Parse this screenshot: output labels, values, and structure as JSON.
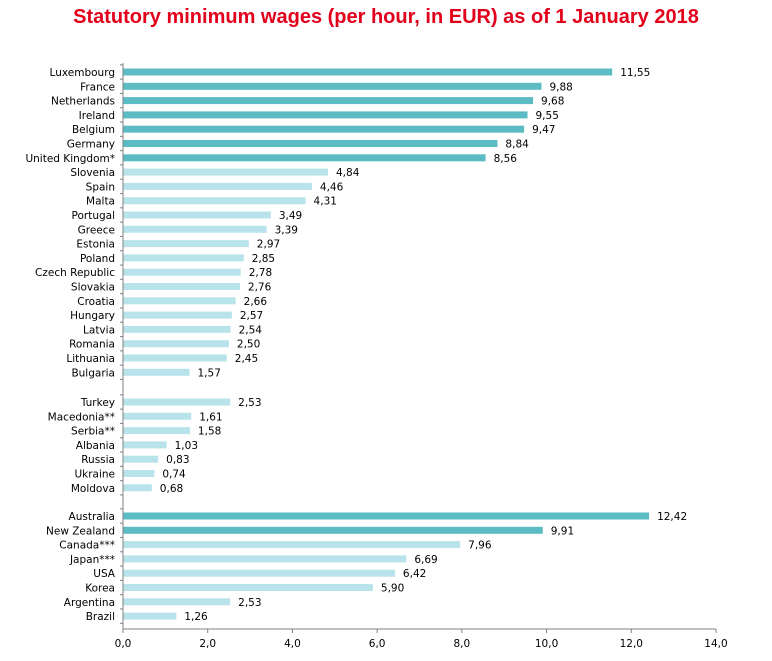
{
  "title": "Statutory minimum wages (per hour, in EUR) as of 1 January 2018",
  "colors": {
    "highlight": "#5bbcc3",
    "regular": "#b9e3ea",
    "axis": "#808080"
  },
  "chart_data": {
    "type": "bar",
    "orientation": "horizontal",
    "title": "Statutory minimum wages (per hour, in EUR) as of 1 January 2018",
    "xlabel": "",
    "ylabel": "",
    "xlim": [
      0,
      14
    ],
    "x_ticks": [
      "0,0",
      "2,0",
      "4,0",
      "6,0",
      "8,0",
      "10,0",
      "12,0",
      "14,0"
    ],
    "grid": false,
    "groups": [
      {
        "categories": [
          "Luxembourg",
          "France",
          "Netherlands",
          "Ireland",
          "Belgium",
          "Germany",
          "United Kingdom*",
          "Slovenia",
          "Spain",
          "Malta",
          "Portugal",
          "Greece",
          "Estonia",
          "Poland",
          "Czech Republic",
          "Slovakia",
          "Croatia",
          "Hungary",
          "Latvia",
          "Romania",
          "Lithuania",
          "Bulgaria"
        ],
        "values": [
          11.55,
          9.88,
          9.68,
          9.55,
          9.47,
          8.84,
          8.56,
          4.84,
          4.46,
          4.31,
          3.49,
          3.39,
          2.97,
          2.85,
          2.78,
          2.76,
          2.66,
          2.57,
          2.54,
          2.5,
          2.45,
          1.57
        ],
        "labels": [
          "11,55",
          "9,88",
          "9,68",
          "9,55",
          "9,47",
          "8,84",
          "8,56",
          "4,84",
          "4,46",
          "4,31",
          "3,49",
          "3,39",
          "2,97",
          "2,85",
          "2,78",
          "2,76",
          "2,66",
          "2,57",
          "2,54",
          "2,50",
          "2,45",
          "1,57"
        ],
        "highlight": [
          true,
          true,
          true,
          true,
          true,
          true,
          true,
          false,
          false,
          false,
          false,
          false,
          false,
          false,
          false,
          false,
          false,
          false,
          false,
          false,
          false,
          false
        ]
      },
      {
        "categories": [
          "Turkey",
          "Macedonia**",
          "Serbia**",
          "Albania",
          "Russia",
          "Ukraine",
          "Moldova"
        ],
        "values": [
          2.53,
          1.61,
          1.58,
          1.03,
          0.83,
          0.74,
          0.68
        ],
        "labels": [
          "2,53",
          "1,61",
          "1,58",
          "1,03",
          "0,83",
          "0,74",
          "0,68"
        ],
        "highlight": [
          false,
          false,
          false,
          false,
          false,
          false,
          false
        ]
      },
      {
        "categories": [
          "Australia",
          "New Zealand",
          "Canada***",
          "Japan***",
          "USA",
          "Korea",
          "Argentina",
          "Brazil"
        ],
        "values": [
          12.42,
          9.91,
          7.96,
          6.69,
          6.42,
          5.9,
          2.53,
          1.26
        ],
        "labels": [
          "12,42",
          "9,91",
          "7,96",
          "6,69",
          "6,42",
          "5,90",
          "2,53",
          "1,26"
        ],
        "highlight": [
          true,
          true,
          false,
          false,
          false,
          false,
          false,
          false
        ]
      }
    ]
  }
}
